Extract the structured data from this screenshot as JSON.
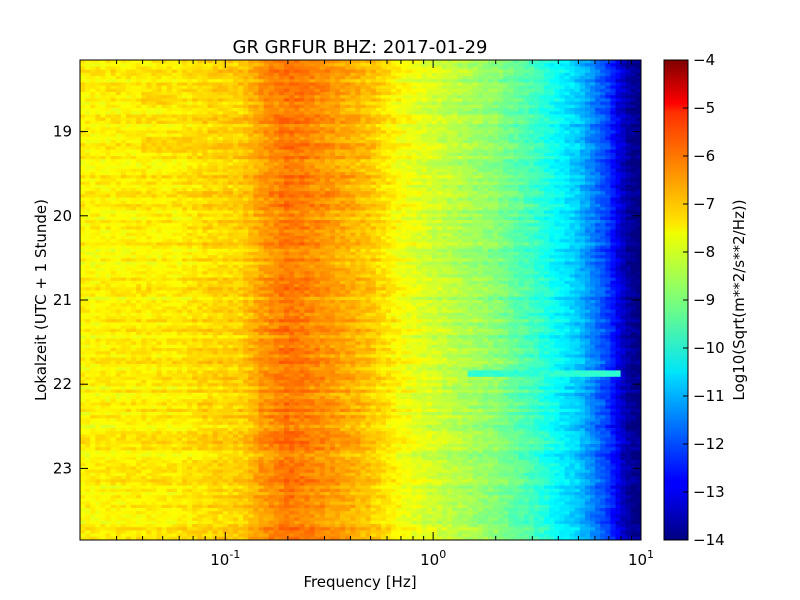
{
  "chart_data": {
    "type": "heatmap",
    "title": "GR GRFUR BHZ: 2017-01-29",
    "xlabel": "Frequency [Hz]",
    "ylabel": "Lokalzeit (UTC + 1 Stunde)",
    "x_scale": "log",
    "xlim": [
      0.02,
      10
    ],
    "x_ticks": [
      {
        "value": 0.1,
        "base": "10",
        "exp": "-1"
      },
      {
        "value": 1,
        "base": "10",
        "exp": "0"
      },
      {
        "value": 10,
        "base": "10",
        "exp": "1"
      }
    ],
    "ylim": [
      18.15,
      23.85
    ],
    "y_inverted": true,
    "y_ticks": [
      {
        "value": 19,
        "label": "19"
      },
      {
        "value": 20,
        "label": "20"
      },
      {
        "value": 21,
        "label": "21"
      },
      {
        "value": 22,
        "label": "22"
      },
      {
        "value": 23,
        "label": "23"
      }
    ],
    "colormap": "jet",
    "colorbar": {
      "label": "Log10(Sqrt(m**2/s**2/Hz))",
      "vmin": -14,
      "vmax": -4,
      "ticks": [
        {
          "value": -4,
          "label": "−4"
        },
        {
          "value": -5,
          "label": "−5"
        },
        {
          "value": -6,
          "label": "−6"
        },
        {
          "value": -7,
          "label": "−7"
        },
        {
          "value": -8,
          "label": "−8"
        },
        {
          "value": -9,
          "label": "−9"
        },
        {
          "value": -10,
          "label": "−10"
        },
        {
          "value": -11,
          "label": "−11"
        },
        {
          "value": -12,
          "label": "−12"
        },
        {
          "value": -13,
          "label": "−13"
        },
        {
          "value": -14,
          "label": "−14"
        }
      ]
    },
    "spectrum_profile": {
      "frequency_hz": [
        0.02,
        0.04,
        0.06,
        0.08,
        0.1,
        0.12,
        0.15,
        0.2,
        0.3,
        0.5,
        0.7,
        1,
        2,
        3,
        5,
        7,
        8,
        9,
        10
      ],
      "log10_amplitude": [
        -7.7,
        -7.6,
        -7.6,
        -7.4,
        -7.35,
        -7.3,
        -6.8,
        -6.4,
        -6.7,
        -7.2,
        -7.8,
        -8.2,
        -8.9,
        -9.6,
        -10.8,
        -12.2,
        -13.2,
        -13.8,
        -14
      ]
    },
    "bands": [
      {
        "time_range": [
          18.55,
          18.7
        ],
        "freq_range": [
          0.04,
          0.06
        ],
        "log10_amplitude": -7.3
      },
      {
        "time_range": [
          19.05,
          19.25
        ],
        "freq_range": [
          0.04,
          0.08
        ],
        "log10_amplitude": -7.3
      },
      {
        "time_range": [
          21.85,
          21.9
        ],
        "freq_range": [
          1.5,
          8
        ],
        "log10_amplitude": -9.8
      }
    ]
  }
}
